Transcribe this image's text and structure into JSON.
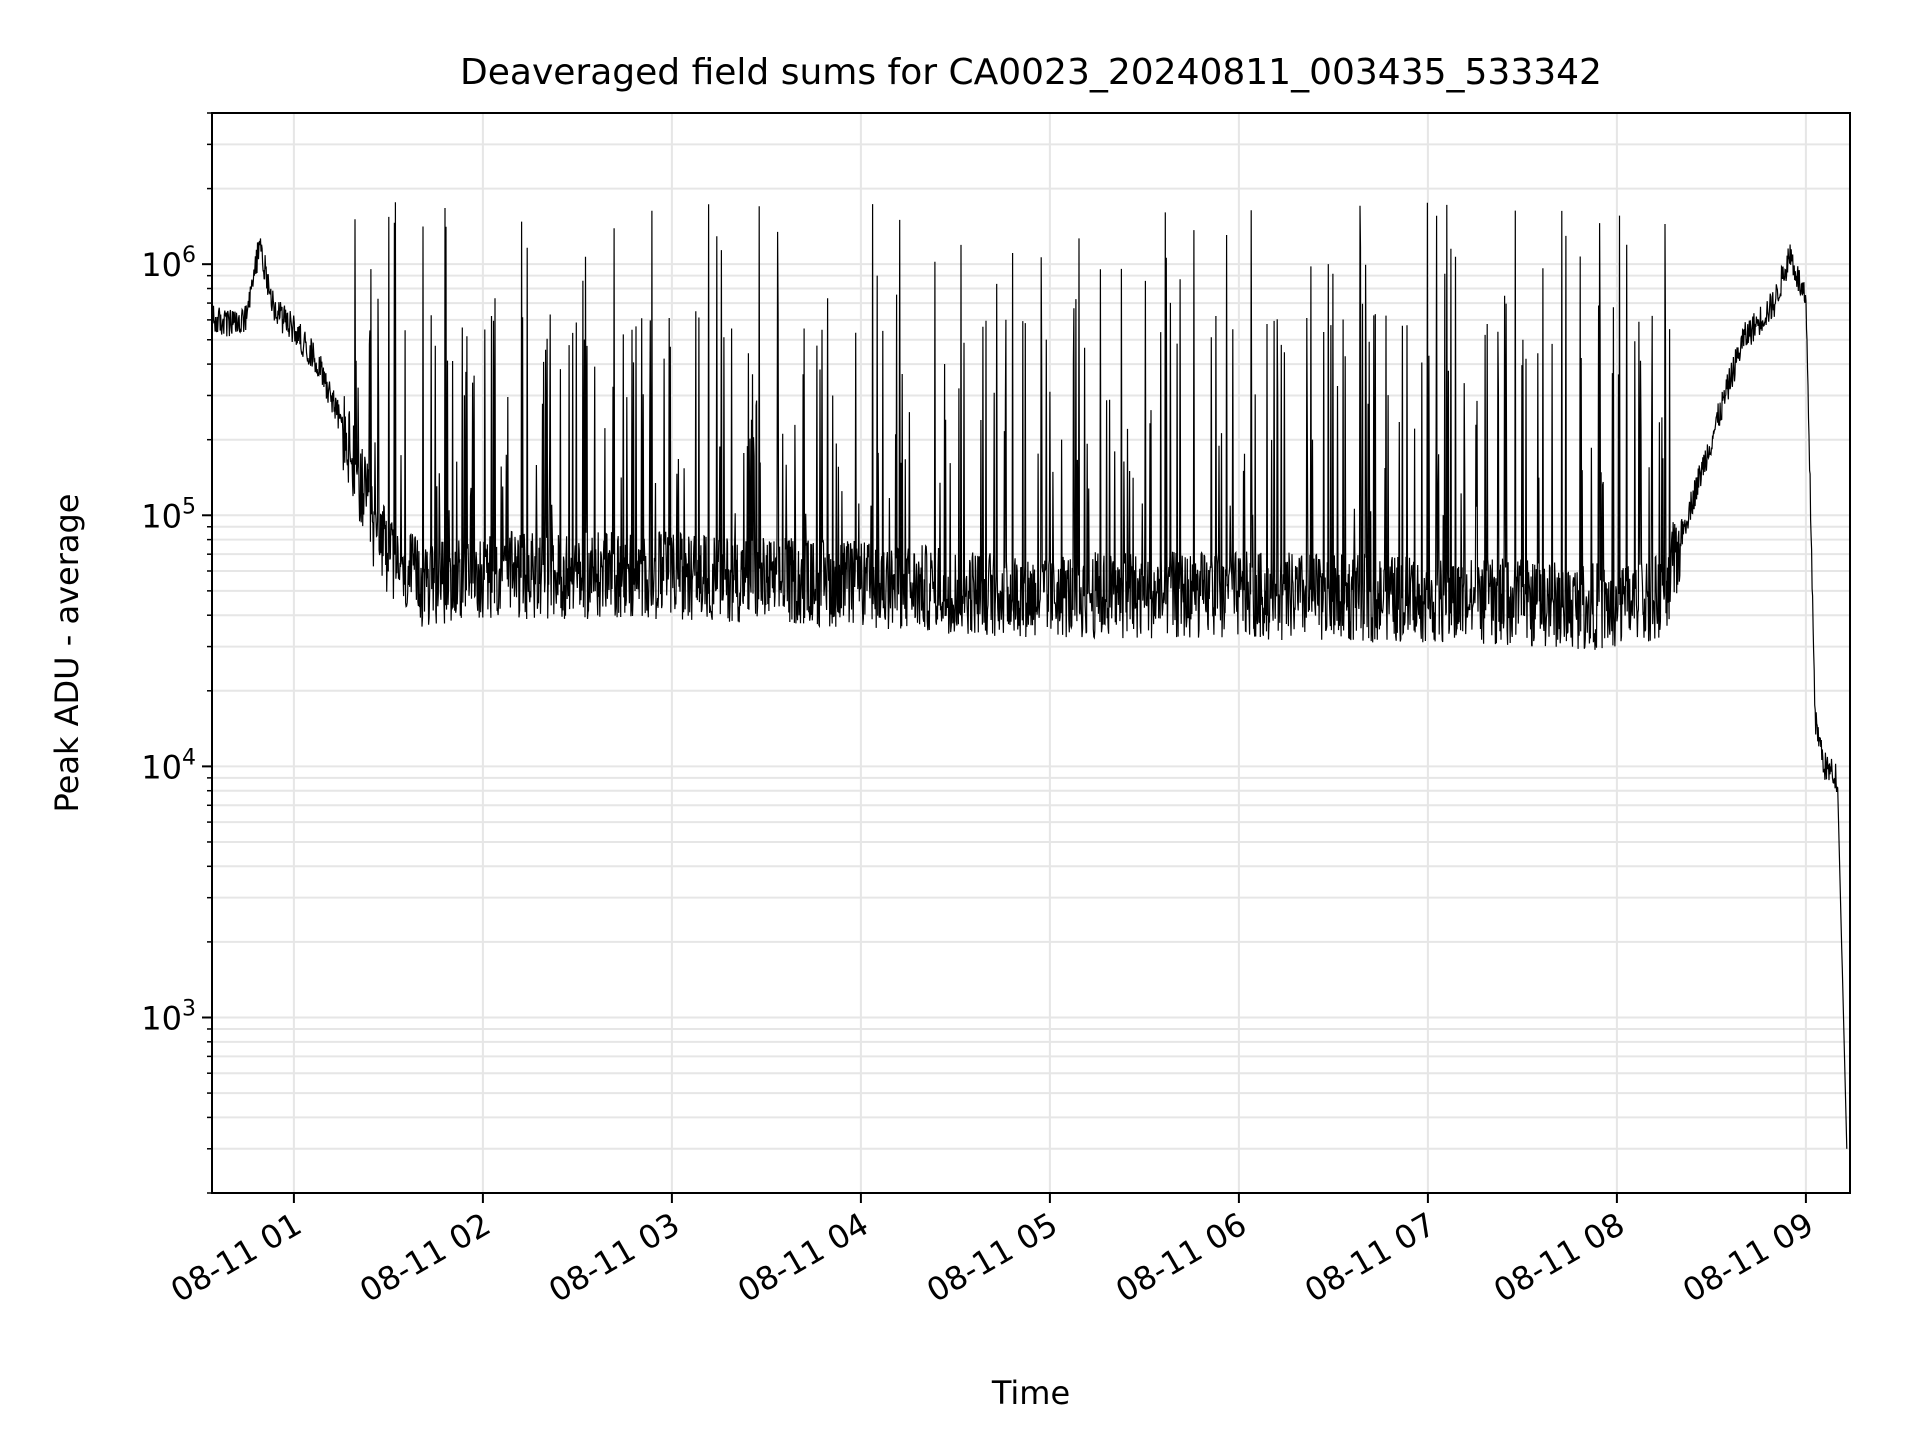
{
  "chart_data": {
    "type": "line",
    "title": "Deaveraged field sums for CA0023_20240811_003435_533342",
    "xlabel": "Time",
    "ylabel": "Peak ADU - average",
    "y_scale": "log",
    "ylim": [
      200,
      4000000
    ],
    "xlim": [
      "2024-08-11 00:34",
      "2024-08-11 09:14"
    ],
    "x_ticks": [
      "08-11 01",
      "08-11 02",
      "08-11 03",
      "08-11 04",
      "08-11 05",
      "08-11 06",
      "08-11 07",
      "08-11 08",
      "08-11 09"
    ],
    "y_ticks": [
      {
        "base": "10",
        "exp": "3",
        "value": 1000
      },
      {
        "base": "10",
        "exp": "4",
        "value": 10000
      },
      {
        "base": "10",
        "exp": "5",
        "value": 100000
      },
      {
        "base": "10",
        "exp": "6",
        "value": 1000000
      }
    ],
    "grid": true,
    "line_color": "#000000",
    "series": [
      {
        "x": [
          "2024-08-11 00:34",
          "2024-08-11 00:41",
          "2024-08-11 00:45",
          "2024-08-11 00:49",
          "2024-08-11 00:54",
          "2024-08-11 01:00",
          "2024-08-11 01:08",
          "2024-08-11 01:17",
          "2024-08-11 01:27",
          "2024-08-11 01:40",
          "2024-08-11 02:00",
          "2024-08-11 03:00",
          "2024-08-11 04:00",
          "2024-08-11 05:00",
          "2024-08-11 06:00",
          "2024-08-11 07:00",
          "2024-08-11 08:00",
          "2024-08-11 08:15",
          "2024-08-11 08:20",
          "2024-08-11 08:30",
          "2024-08-11 08:40",
          "2024-08-11 08:50",
          "2024-08-11 08:55",
          "2024-08-11 09:00",
          "2024-08-11 09:03",
          "2024-08-11 09:06",
          "2024-08-11 09:10",
          "2024-08-11 09:13"
        ],
        "y": [
          600000,
          570000,
          600000,
          1200000,
          650000,
          550000,
          400000,
          200000,
          80000,
          55000,
          60000,
          60000,
          55000,
          50000,
          50000,
          48000,
          45000,
          50000,
          80000,
          200000,
          500000,
          700000,
          1100000,
          700000,
          15000,
          10000,
          9000,
          300
        ]
      }
    ]
  }
}
